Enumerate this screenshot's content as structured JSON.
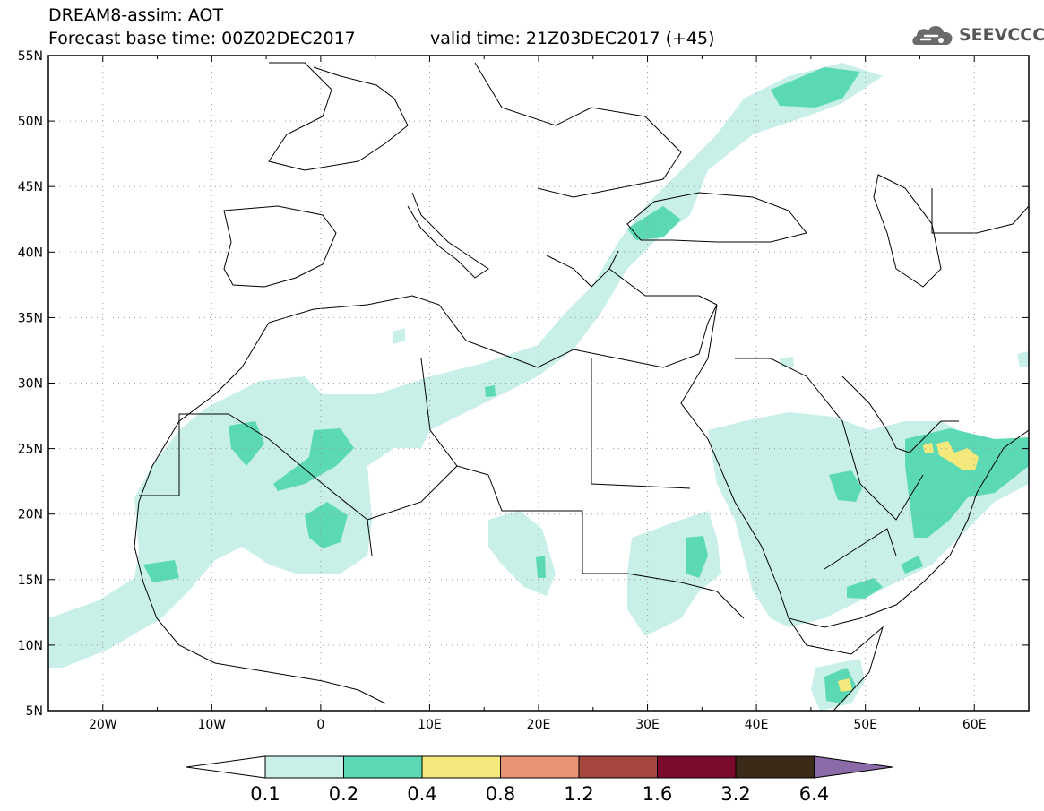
{
  "header": {
    "line1": "DREAM8-assim: AOT",
    "line2": "Forecast base time: 00Z02DEC2017",
    "valid": "valid time: 21Z03DEC2017 (+45)"
  },
  "logo": {
    "text": "SEEVCCC",
    "icon": "cloud-icon"
  },
  "map": {
    "lat_labels": [
      "55N",
      "50N",
      "45N",
      "40N",
      "35N",
      "30N",
      "25N",
      "20N",
      "15N",
      "10N",
      "5N"
    ],
    "lon_labels": [
      "20W",
      "10W",
      "0",
      "10E",
      "20E",
      "30E",
      "40E",
      "50E",
      "60E"
    ],
    "extent": {
      "lon_min": -25,
      "lon_max": 65,
      "lat_min": 5,
      "lat_max": 55
    },
    "grid": true
  },
  "colorbar": {
    "levels": [
      "0.1",
      "0.2",
      "0.4",
      "0.8",
      "1.2",
      "1.6",
      "3.2",
      "6.4"
    ],
    "colors": [
      "#ffffff",
      "#c8f0e8",
      "#5ad9b4",
      "#f5e87c",
      "#e69473",
      "#a5473f",
      "#7c0a2d",
      "#3c2a18",
      "#8c6ca8"
    ]
  }
}
